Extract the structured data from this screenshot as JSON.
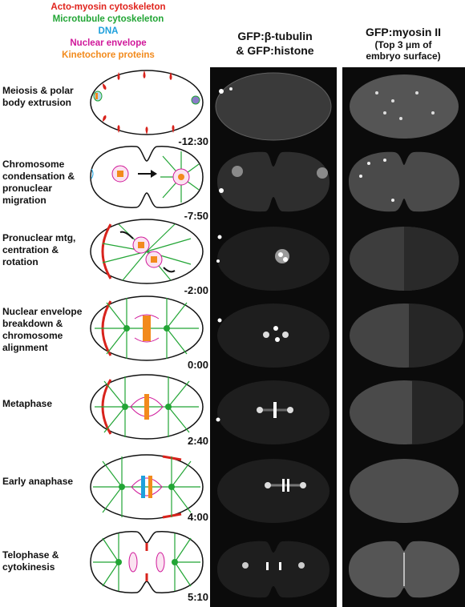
{
  "legend": [
    {
      "label": "Acto-myosin cytoskeleton",
      "color": "#e0231c"
    },
    {
      "label": "Microtubule cytoskeleton",
      "color": "#22a535"
    },
    {
      "label": "DNA",
      "color": "#1ea0dc"
    },
    {
      "label": "Nuclear envelope",
      "color": "#d0189a"
    },
    {
      "label": "Kinetochore proteins",
      "color": "#f28a1c"
    }
  ],
  "columns": {
    "tubulin_line1": "GFP:β-tubulin",
    "tubulin_line2": "& GFP:histone",
    "myosin_line1": "GFP:myosin II",
    "myosin_line2": "(Top 3 μm of",
    "myosin_line3": "embryo surface)"
  },
  "stages": [
    {
      "label": "Meiosis & polar body extrusion",
      "time": "-12:30"
    },
    {
      "label": "Chromosome condensation & pronuclear migration",
      "time": "-7:50"
    },
    {
      "label": "Pronuclear mtg, centration & rotation",
      "time": "-2:00"
    },
    {
      "label": "Nuclear envelope breakdown & chromosome alignment",
      "time": "0:00"
    },
    {
      "label": "Metaphase",
      "time": "2:40"
    },
    {
      "label": "Early anaphase",
      "time": "4:00"
    },
    {
      "label": "Telophase & cytokinesis",
      "time": "5:10"
    }
  ]
}
